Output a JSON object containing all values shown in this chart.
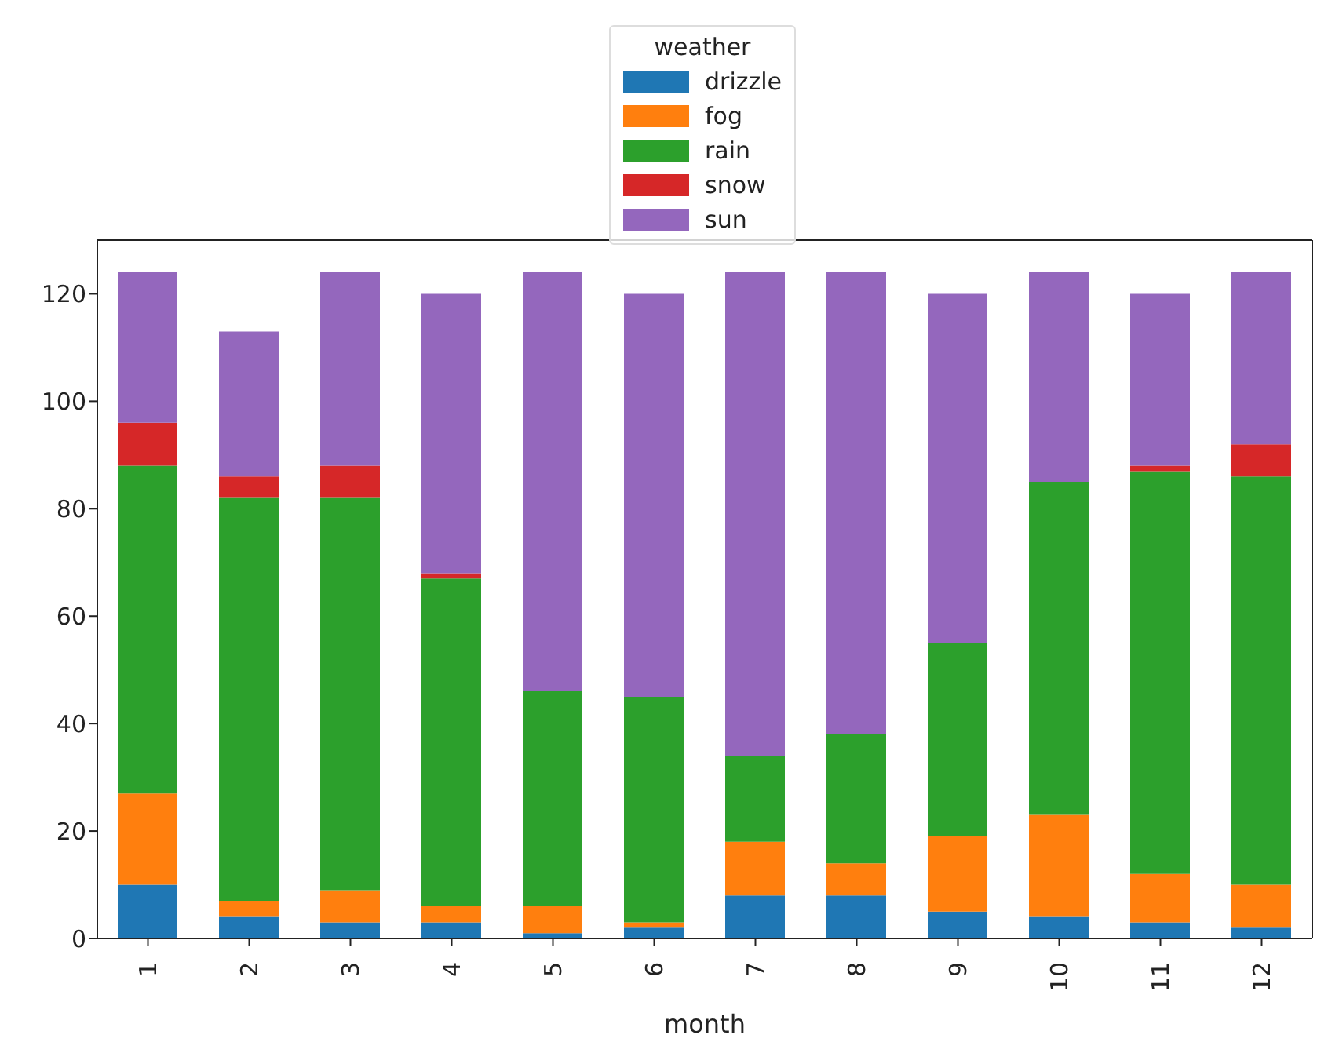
{
  "chart_data": {
    "type": "bar",
    "stacked": true,
    "xlabel": "month",
    "legend_title": "weather",
    "legend": "top",
    "categories": [
      "1",
      "2",
      "3",
      "4",
      "5",
      "6",
      "7",
      "8",
      "9",
      "10",
      "11",
      "12"
    ],
    "series": [
      {
        "name": "drizzle",
        "color": "#1f77b4",
        "values": [
          10,
          4,
          3,
          3,
          1,
          2,
          8,
          8,
          5,
          4,
          3,
          2
        ]
      },
      {
        "name": "fog",
        "color": "#ff7f0e",
        "values": [
          17,
          3,
          6,
          3,
          5,
          1,
          10,
          6,
          14,
          19,
          9,
          8
        ]
      },
      {
        "name": "rain",
        "color": "#2ca02c",
        "values": [
          61,
          75,
          73,
          61,
          40,
          42,
          16,
          24,
          36,
          62,
          75,
          76
        ]
      },
      {
        "name": "snow",
        "color": "#d62728",
        "values": [
          8,
          4,
          6,
          1,
          0,
          0,
          0,
          0,
          0,
          0,
          1,
          6
        ]
      },
      {
        "name": "sun",
        "color": "#9467bd",
        "values": [
          28,
          27,
          36,
          52,
          78,
          75,
          90,
          86,
          65,
          39,
          32,
          32
        ]
      }
    ],
    "ylim": [
      0,
      130
    ],
    "yticks": [
      0,
      20,
      40,
      60,
      80,
      100,
      120
    ],
    "grid": false
  }
}
